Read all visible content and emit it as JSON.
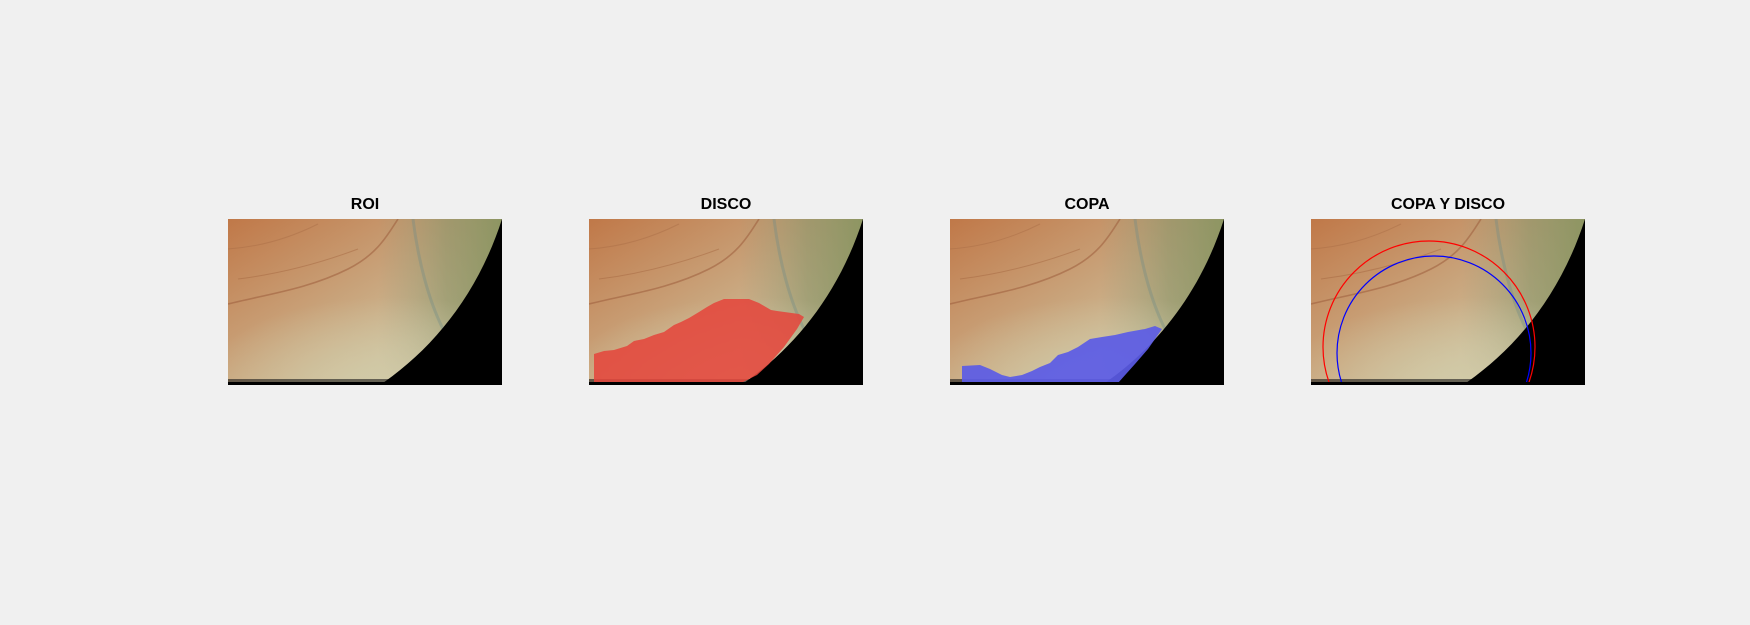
{
  "figure": {
    "panels": [
      {
        "title": "ROI",
        "overlay": "none"
      },
      {
        "title": "DISCO",
        "overlay": "disc-segmentation",
        "overlay_color": "#e4473c"
      },
      {
        "title": "COPA",
        "overlay": "cup-segmentation",
        "overlay_color": "#5b5be6"
      },
      {
        "title": "COPA Y DISCO",
        "overlay": "fitted-circles",
        "disc_circle_color": "#ff0000",
        "cup_circle_color": "#0000ff"
      }
    ],
    "colors": {
      "background": "#f0f0f0",
      "retina_warm": "#c27a49",
      "retina_pale": "#ccc4a0",
      "retina_green": "#8e9460",
      "mask_black": "#000000"
    }
  }
}
